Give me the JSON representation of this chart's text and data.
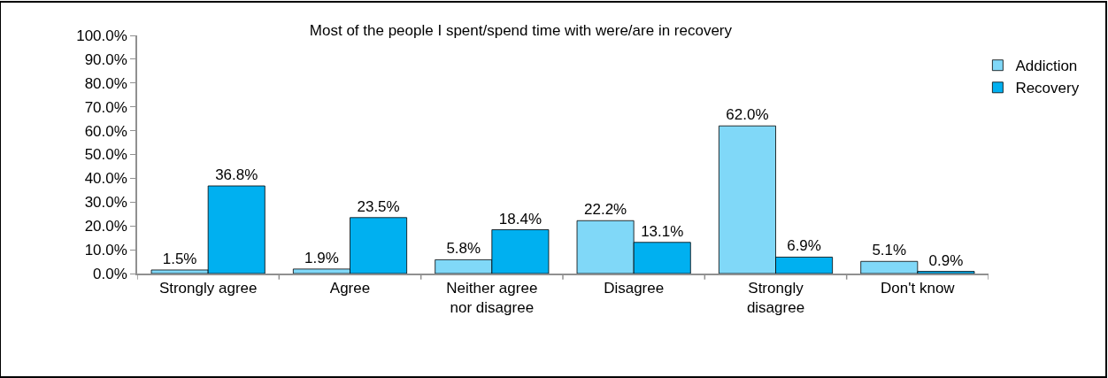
{
  "chart_data": {
    "type": "bar",
    "title": "Most of the people I spent/spend time with were/are in recovery",
    "categories": [
      "Strongly agree",
      "Agree",
      "Neither agree nor disagree",
      "Disagree",
      "Strongly disagree",
      "Don't know"
    ],
    "series": [
      {
        "name": "Addiction",
        "color": "#80d8f8",
        "values": [
          1.5,
          1.9,
          5.8,
          22.2,
          62.0,
          5.1
        ],
        "value_labels": [
          "1.5%",
          "1.9%",
          "5.8%",
          "22.2%",
          "62.0%",
          "5.1%"
        ]
      },
      {
        "name": "Recovery",
        "color": "#00b0f0",
        "values": [
          36.8,
          23.5,
          18.4,
          13.1,
          6.9,
          0.9
        ],
        "value_labels": [
          "36.8%",
          "23.5%",
          "18.4%",
          "13.1%",
          "6.9%",
          "0.9%"
        ]
      }
    ],
    "ylim": [
      0,
      100
    ],
    "yticks": [
      {
        "value": 0,
        "label": "0.0%"
      },
      {
        "value": 10,
        "label": "10.0%"
      },
      {
        "value": 20,
        "label": "20.0%"
      },
      {
        "value": 30,
        "label": "30.0%"
      },
      {
        "value": 40,
        "label": "40.0%"
      },
      {
        "value": 50,
        "label": "50.0%"
      },
      {
        "value": 60,
        "label": "60.0%"
      },
      {
        "value": 70,
        "label": "70.0%"
      },
      {
        "value": 80,
        "label": "80.0%"
      },
      {
        "value": 90,
        "label": "90.0%"
      },
      {
        "value": 100,
        "label": "100.0%"
      }
    ],
    "legend": "top right"
  }
}
